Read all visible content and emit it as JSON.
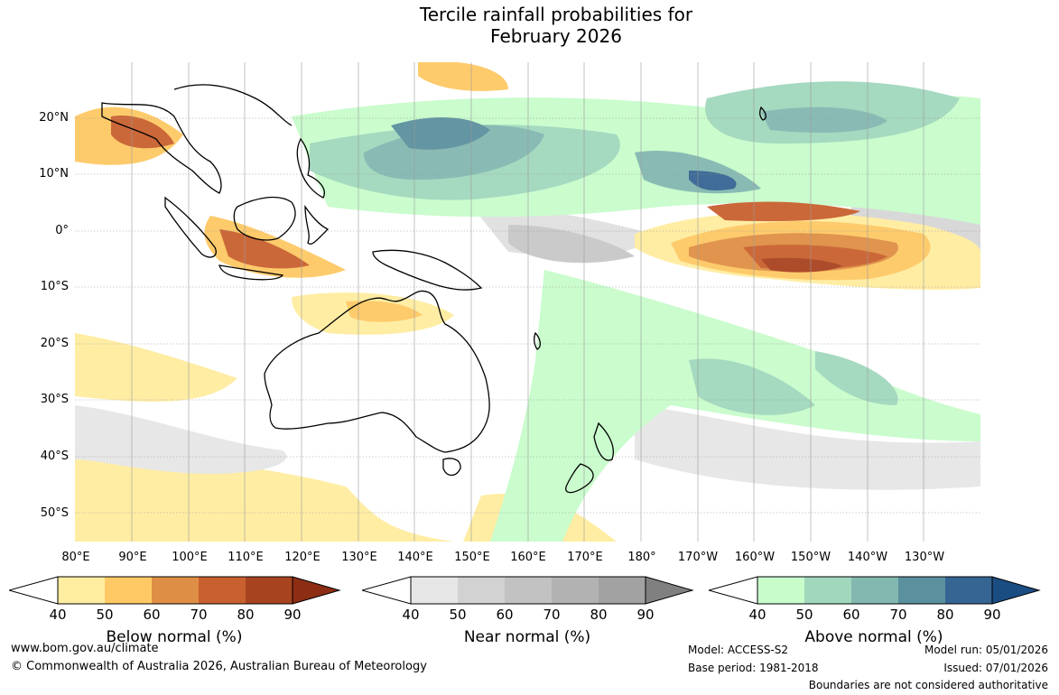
{
  "title_line1": "Tercile rainfall probabilities for",
  "title_line2": "February 2026",
  "lat_labels": [
    "20°N",
    "10°N",
    "0°",
    "10°S",
    "20°S",
    "30°S",
    "40°S",
    "50°S"
  ],
  "lon_labels": [
    "80°E",
    "90°E",
    "100°E",
    "110°E",
    "120°E",
    "130°E",
    "140°E",
    "150°E",
    "160°E",
    "170°E",
    "180°",
    "170°W",
    "160°W",
    "150°W",
    "140°W",
    "130°W"
  ],
  "colorbars": [
    {
      "label": "Below normal (%)",
      "ticks": [
        "40",
        "50",
        "60",
        "70",
        "80",
        "90"
      ],
      "colors": [
        "#ffeda0",
        "#fec965",
        "#df8f45",
        "#c9602f",
        "#a84320",
        "#8c2d14"
      ]
    },
    {
      "label": "Near normal (%)",
      "ticks": [
        "40",
        "50",
        "60",
        "70",
        "80",
        "90"
      ],
      "colors": [
        "#e6e6e6",
        "#d2d2d2",
        "#c2c2c2",
        "#b2b2b2",
        "#a2a2a2",
        "#808080"
      ]
    },
    {
      "label": "Above normal (%)",
      "ticks": [
        "40",
        "50",
        "60",
        "70",
        "80",
        "90"
      ],
      "colors": [
        "#c8fccb",
        "#a1d8bd",
        "#83b8b0",
        "#5b909f",
        "#356593",
        "#1a4d82"
      ]
    }
  ],
  "footer": {
    "website": "www.bom.gov.au/climate",
    "copyright": "© Commonwealth of Australia 2026, Australian Bureau of Meteorology",
    "model": "Model: ACCESS-S2",
    "base_period": "Base period: 1981-2018",
    "model_run": "Model run: 05/01/2026",
    "issued": "Issued: 07/01/2026",
    "disclaimer": "Boundaries are not considered authoritative"
  }
}
